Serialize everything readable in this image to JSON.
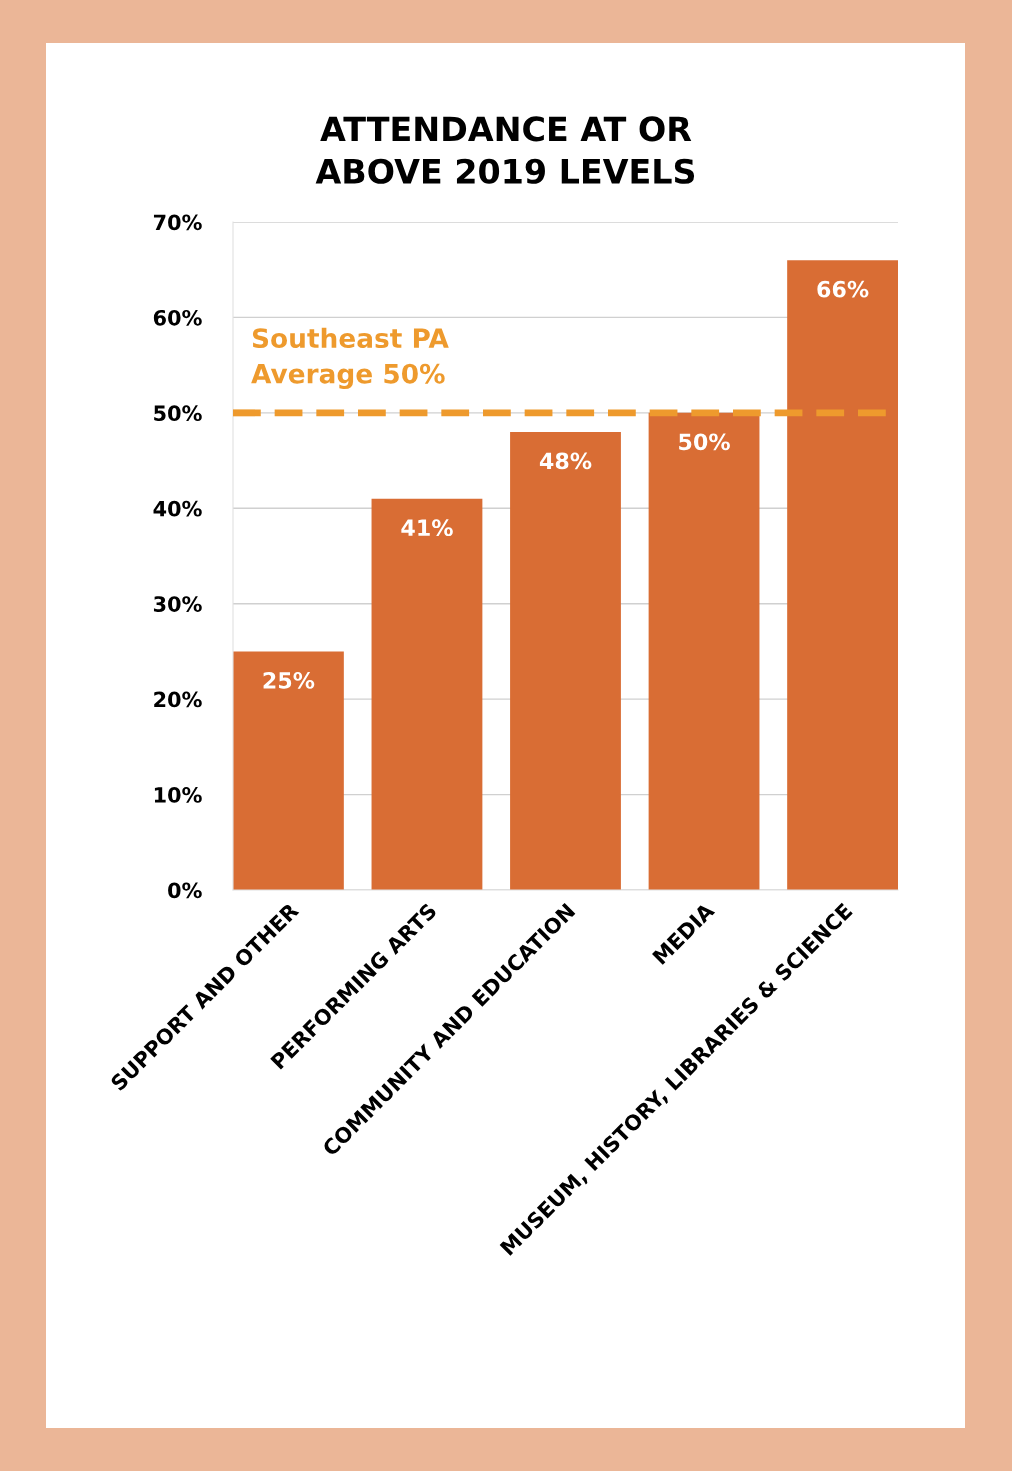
{
  "chart_data": {
    "type": "bar",
    "title": "ATTENDANCE AT OR\nABOVE 2019 LEVELS",
    "categories": [
      "SUPPORT AND OTHER",
      "PERFORMING ARTS",
      "COMMUNITY AND EDUCATION",
      "MEDIA",
      "MUSEUM, HISTORY, LIBRARIES & SCIENCE"
    ],
    "values": [
      25,
      41,
      48,
      50,
      66
    ],
    "value_labels": [
      "25%",
      "41%",
      "48%",
      "50%",
      "66%"
    ],
    "color": "#d96d34",
    "ylim": [
      0,
      70
    ],
    "yticks": [
      {
        "value": 0,
        "label": "0%"
      },
      {
        "value": 10,
        "label": "10%"
      },
      {
        "value": 20,
        "label": "20%"
      },
      {
        "value": 30,
        "label": "30%"
      },
      {
        "value": 40,
        "label": "40%"
      },
      {
        "value": 50,
        "label": "50%"
      },
      {
        "value": 60,
        "label": "60%"
      },
      {
        "value": 70,
        "label": "70%"
      }
    ],
    "grid": "y",
    "ref_lines": [
      {
        "axis": "y",
        "value": 50,
        "label": "Southeast PA\nAverage 50%",
        "color": "#ee9a2d",
        "line_style": "dashed"
      }
    ]
  }
}
